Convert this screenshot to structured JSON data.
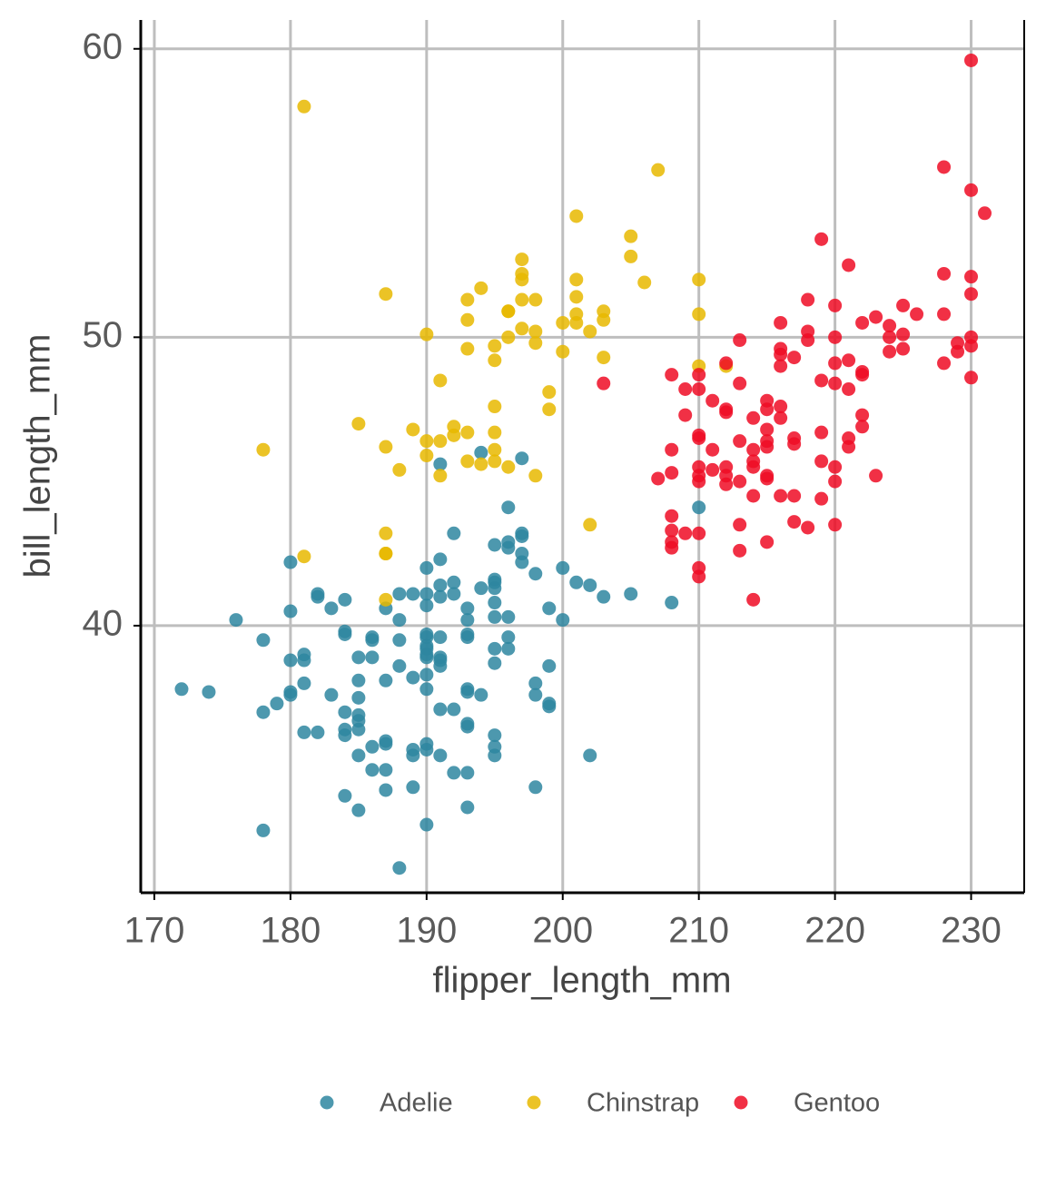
{
  "chart_data": {
    "type": "scatter",
    "x_label": "flipper_length_mm",
    "y_label": "bill_length_mm",
    "xlim": [
      169,
      233.9
    ],
    "ylim": [
      30.74,
      61
    ],
    "xticks": [
      170,
      180,
      190,
      200,
      210,
      220,
      230
    ],
    "yticks": [
      40,
      50,
      60
    ],
    "grid": true,
    "legend": "bottom",
    "series": [
      {
        "name": "Adelie",
        "color": "#2e86a0",
        "x": [
          191,
          197,
          194,
          196,
          210,
          192,
          197,
          197,
          195,
          196,
          196,
          197,
          191,
          180,
          197,
          190,
          200,
          195,
          195,
          198,
          202,
          201,
          191,
          192,
          189,
          188,
          182,
          182,
          184,
          190,
          191,
          192,
          194,
          195,
          203,
          205,
          208,
          187,
          190,
          195,
          199,
          183,
          180,
          193,
          176,
          188,
          193,
          195,
          196,
          200,
          184,
          184,
          186,
          186,
          190,
          190,
          191,
          193,
          193,
          196,
          178,
          188,
          190,
          190,
          190,
          190,
          191,
          191,
          191,
          195,
          196,
          181,
          181,
          185,
          186,
          180,
          195,
          199,
          187,
          188,
          189,
          190,
          185,
          181,
          198,
          193,
          193,
          194,
          180,
          180,
          183,
          185,
          190,
          198,
          199,
          199,
          172,
          174,
          179,
          178,
          184,
          185,
          185,
          191,
          192,
          193,
          193,
          185,
          184,
          184,
          181,
          182,
          187,
          187,
          189,
          190,
          186,
          191,
          195,
          195,
          195,
          189,
          190,
          185,
          202,
          186,
          187,
          192,
          193,
          189,
          187,
          198,
          184,
          185,
          193,
          190,
          178,
          188
        ],
        "values": [
          45.6,
          45.8,
          46.0,
          44.1,
          44.1,
          43.2,
          43.2,
          43.1,
          42.8,
          42.9,
          42.7,
          42.5,
          42.3,
          42.2,
          42.2,
          42.0,
          42.0,
          41.6,
          41.5,
          41.8,
          41.4,
          41.5,
          41.4,
          41.5,
          41.1,
          41.1,
          41.1,
          41.0,
          40.9,
          41.1,
          41.0,
          41.1,
          41.3,
          41.3,
          41.0,
          41.1,
          40.8,
          40.6,
          40.7,
          40.8,
          40.6,
          40.6,
          40.5,
          40.6,
          40.2,
          40.2,
          40.2,
          40.3,
          40.3,
          40.2,
          39.8,
          39.7,
          39.6,
          39.5,
          39.7,
          39.6,
          39.6,
          39.7,
          39.6,
          39.6,
          39.5,
          39.5,
          39.3,
          39.2,
          39.0,
          38.9,
          38.9,
          38.8,
          38.6,
          39.2,
          39.2,
          39.0,
          38.8,
          38.9,
          38.9,
          38.8,
          38.7,
          38.6,
          38.1,
          38.6,
          38.2,
          38.3,
          38.1,
          38.0,
          38.0,
          37.8,
          37.7,
          37.6,
          37.7,
          37.6,
          37.6,
          37.5,
          37.8,
          37.6,
          37.3,
          37.2,
          37.8,
          37.7,
          37.3,
          37.0,
          37.0,
          36.9,
          36.7,
          37.1,
          37.1,
          36.6,
          36.5,
          36.4,
          36.4,
          36.2,
          36.3,
          36.3,
          36.0,
          35.9,
          35.7,
          35.7,
          35.8,
          35.5,
          36.2,
          35.8,
          35.5,
          35.5,
          35.9,
          35.5,
          35.5,
          35.0,
          35.0,
          34.9,
          34.9,
          34.4,
          34.3,
          34.4,
          34.1,
          33.6,
          33.7,
          33.1,
          32.9,
          31.6
        ]
      },
      {
        "name": "Chinstrap",
        "color": "#e7b800",
        "x": [
          181,
          207,
          201,
          205,
          205,
          197,
          197,
          197,
          201,
          206,
          210,
          194,
          187,
          193,
          197,
          198,
          201,
          196,
          196,
          201,
          203,
          210,
          193,
          203,
          200,
          201,
          197,
          198,
          202,
          190,
          196,
          198,
          195,
          193,
          200,
          203,
          195,
          210,
          212,
          191,
          199,
          199,
          195,
          185,
          192,
          189,
          193,
          195,
          178,
          187,
          190,
          191,
          192,
          195,
          190,
          193,
          194,
          195,
          196,
          188,
          191,
          198,
          202,
          187,
          187,
          187,
          181,
          187
        ],
        "values": [
          58.0,
          55.8,
          54.2,
          53.5,
          52.8,
          52.7,
          52.2,
          52.0,
          52.0,
          51.9,
          52.0,
          51.7,
          51.5,
          51.3,
          51.3,
          51.3,
          51.4,
          50.9,
          50.9,
          50.8,
          50.9,
          50.8,
          50.6,
          50.6,
          50.5,
          50.5,
          50.3,
          50.2,
          50.2,
          50.1,
          50.0,
          49.8,
          49.7,
          49.6,
          49.5,
          49.3,
          49.2,
          49.0,
          49.0,
          48.5,
          48.1,
          47.5,
          47.6,
          47.0,
          46.9,
          46.8,
          46.7,
          46.7,
          46.1,
          46.2,
          46.4,
          46.4,
          46.6,
          46.1,
          45.9,
          45.7,
          45.6,
          45.7,
          45.5,
          45.4,
          45.2,
          45.2,
          43.5,
          43.2,
          42.5,
          42.5,
          42.4,
          40.9
        ]
      },
      {
        "name": "Gentoo",
        "color": "#ee0c24",
        "x": [
          230,
          228,
          230,
          231,
          219,
          221,
          228,
          230,
          230,
          218,
          220,
          225,
          226,
          228,
          223,
          222,
          224,
          216,
          218,
          220,
          224,
          225,
          230,
          229,
          213,
          216,
          216,
          229,
          224,
          225,
          230,
          218,
          221,
          217,
          220,
          212,
          228,
          216,
          222,
          222,
          219,
          220,
          230,
          208,
          210,
          213,
          203,
          221,
          209,
          210,
          211,
          215,
          216,
          215,
          212,
          209,
          212,
          222,
          214,
          216,
          215,
          217,
          219,
          222,
          210,
          213,
          215,
          217,
          221,
          221,
          208,
          210,
          211,
          214,
          215,
          212,
          211,
          208,
          210,
          210,
          212,
          214,
          214,
          215,
          215,
          219,
          220,
          207,
          210,
          212,
          213,
          223,
          220,
          214,
          216,
          217,
          219,
          208,
          208,
          210,
          213,
          217,
          218,
          220,
          209,
          208,
          208,
          213,
          215,
          210,
          210,
          214
        ],
        "values": [
          59.6,
          55.9,
          55.1,
          54.3,
          53.4,
          52.5,
          52.2,
          52.1,
          51.5,
          51.3,
          51.1,
          51.1,
          50.8,
          50.8,
          50.7,
          50.5,
          50.4,
          50.5,
          50.2,
          50.0,
          50.0,
          50.1,
          50.0,
          49.8,
          49.9,
          49.6,
          49.4,
          49.5,
          49.5,
          49.6,
          49.7,
          49.9,
          49.2,
          49.3,
          49.1,
          49.1,
          49.1,
          49.0,
          48.8,
          48.7,
          48.5,
          48.4,
          48.6,
          48.7,
          48.7,
          48.4,
          48.4,
          48.2,
          48.2,
          48.2,
          47.8,
          47.8,
          47.6,
          47.5,
          47.5,
          47.3,
          47.4,
          47.3,
          47.2,
          47.2,
          46.8,
          46.5,
          46.7,
          46.9,
          46.5,
          46.4,
          46.4,
          46.3,
          46.5,
          46.2,
          46.1,
          46.6,
          46.1,
          46.1,
          46.2,
          45.5,
          45.4,
          45.3,
          45.5,
          45.2,
          45.2,
          45.7,
          45.5,
          45.2,
          45.1,
          45.7,
          45.5,
          45.1,
          45.0,
          44.9,
          45.0,
          45.2,
          45.0,
          44.5,
          44.5,
          44.5,
          44.4,
          43.8,
          43.3,
          43.2,
          43.5,
          43.6,
          43.4,
          43.5,
          43.2,
          42.9,
          42.7,
          42.6,
          42.9,
          42.0,
          41.7,
          40.9
        ]
      }
    ]
  }
}
